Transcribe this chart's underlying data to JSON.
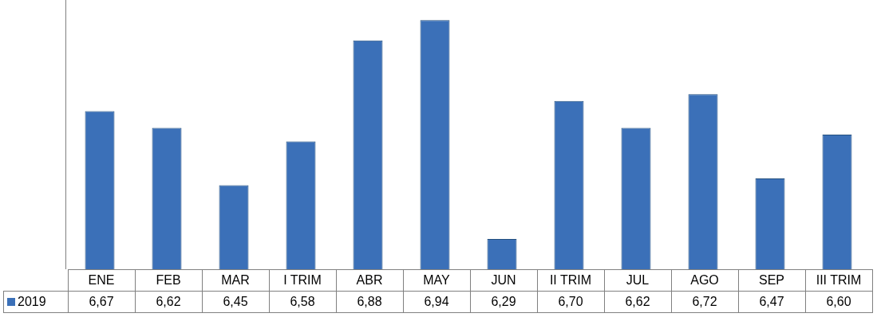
{
  "chart_data": {
    "type": "bar",
    "categories": [
      "ENE",
      "FEB",
      "MAR",
      "I TRIM",
      "ABR",
      "MAY",
      "JUN",
      "II TRIM",
      "JUL",
      "AGO",
      "SEP",
      "III TRIM"
    ],
    "series": [
      {
        "name": "2019",
        "color": "#3b70b8",
        "values": [
          6.67,
          6.62,
          6.45,
          6.58,
          6.88,
          6.94,
          6.29,
          6.7,
          6.62,
          6.72,
          6.47,
          6.6
        ],
        "value_labels": [
          "6,67",
          "6,62",
          "6,45",
          "6,58",
          "6,88",
          "6,94",
          "6,29",
          "6,70",
          "6,62",
          "6,72",
          "6,47",
          "6,60"
        ]
      }
    ],
    "legend": "left"
  }
}
